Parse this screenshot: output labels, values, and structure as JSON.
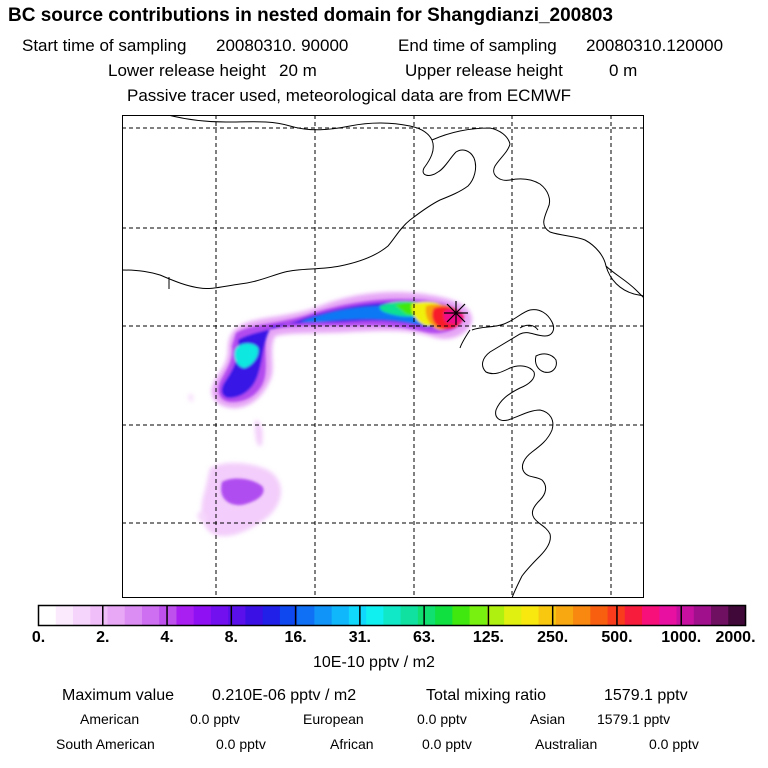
{
  "title": "BC  source contributions in nested domain for Shangdianzi_200803",
  "sampling": {
    "start_label": "Start time of sampling",
    "start_value": "20080310. 90000",
    "end_label": "End time of sampling",
    "end_value": "20080310.120000"
  },
  "release": {
    "lower_label": "Lower release height",
    "lower_value": "20 m",
    "upper_label": "Upper release height",
    "upper_value": "0 m"
  },
  "tracer_note": "Passive tracer used, meteorological data are from ECMWF",
  "colorbar": {
    "labels": [
      "0.",
      "2.",
      "4.",
      "8.",
      "16.",
      "31.",
      "63.",
      "125.",
      "250.",
      "500.",
      "1000.",
      "2000."
    ],
    "unit": "10E-10 pptv / m2",
    "colors": [
      "#ffffff",
      "#fbeafe",
      "#f6d5fd",
      "#f0bff9",
      "#e8a8f6",
      "#dc8df3",
      "#cd6ff0",
      "#be50ee",
      "#a91ff2",
      "#8f10f3",
      "#7310f0",
      "#5a10ea",
      "#3b10e4",
      "#2020e8",
      "#1048f0",
      "#1070f5",
      "#1094f8",
      "#10b8fb",
      "#10d8fc",
      "#10f0f0",
      "#10e8c8",
      "#10e0a0",
      "#10e070",
      "#10e040",
      "#40e810",
      "#78f010",
      "#b0f010",
      "#e0f010",
      "#f8e810",
      "#f8c810",
      "#f8a810",
      "#f88810",
      "#f86010",
      "#f83c1c",
      "#f81c3c",
      "#f8107a",
      "#e810a0",
      "#c810a0",
      "#a0108c",
      "#701060",
      "#400838"
    ]
  },
  "summary": {
    "max_label": "Maximum value",
    "max_value": "0.210E-06 pptv / m2",
    "total_label": "Total mixing ratio",
    "total_value": "1579.1 pptv"
  },
  "regions": [
    {
      "name": "American",
      "value": "0.0 pptv"
    },
    {
      "name": "European",
      "value": "0.0 pptv"
    },
    {
      "name": "Asian",
      "value": "1579.1 pptv"
    },
    {
      "name": "South American",
      "value": "0.0 pptv"
    },
    {
      "name": "African",
      "value": "0.0 pptv"
    },
    {
      "name": "Australian",
      "value": "0.0 pptv"
    }
  ],
  "colors": {
    "receptor_marker": "#000000",
    "frame": "#000000"
  }
}
